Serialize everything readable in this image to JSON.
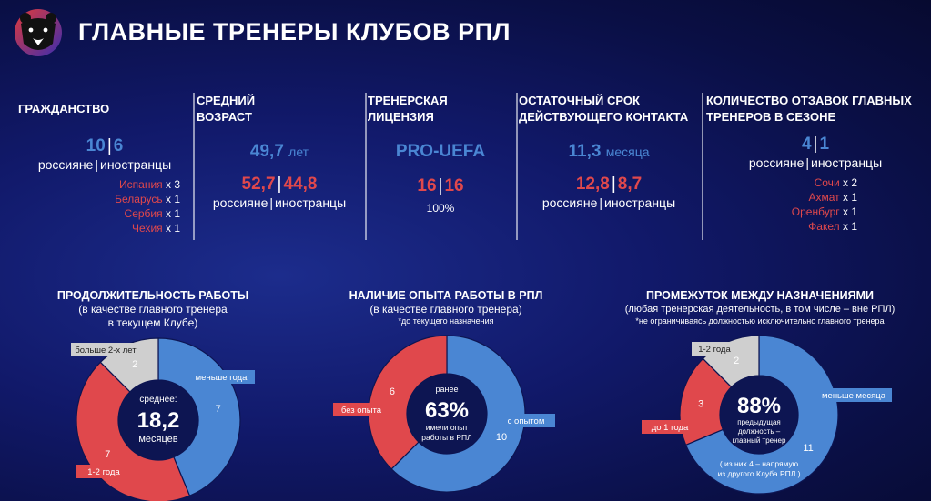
{
  "header": {
    "title": "ГЛАВНЫЕ ТРЕНЕРЫ КЛУБОВ РПЛ"
  },
  "colors": {
    "blue": "#4a86d3",
    "red": "#e0484c",
    "gray": "#cfcfcf",
    "center": "#0d1552"
  },
  "stats": {
    "citizenship": {
      "title": "ГРАЖДАНСТВО",
      "russians": "10",
      "foreigners": "6",
      "sublabel_left": "россияне",
      "sublabel_right": "иностранцы",
      "countries": [
        {
          "name": "Испания",
          "count": "х 3"
        },
        {
          "name": "Беларусь",
          "count": "х 1"
        },
        {
          "name": "Сербия",
          "count": "х 1"
        },
        {
          "name": "Чехия",
          "count": "х 1"
        }
      ]
    },
    "age": {
      "title_l1": "СРЕДНИЙ",
      "title_l2": "ВОЗРАСТ",
      "avg": "49,7",
      "avg_unit": "лет",
      "russians": "52,7",
      "foreigners": "44,8",
      "sublabel_left": "россияне",
      "sublabel_right": "иностранцы"
    },
    "license": {
      "title_l1": "ТРЕНЕРСКАЯ",
      "title_l2": "ЛИЦЕНЗИЯ",
      "name": "PRO-UEFA",
      "have": "16",
      "total": "16",
      "percent": "100%"
    },
    "contract": {
      "title_l1": "ОСТАТОЧНЫЙ СРОК",
      "title_l2": "ДЕЙСТВУЮЩЕГО КОНТАКТА",
      "avg": "11,3",
      "avg_unit": "месяца",
      "russians": "12,8",
      "foreigners": "8,7",
      "sublabel_left": "россияне",
      "sublabel_right": "иностранцы"
    },
    "dismissals": {
      "title_l1": "КОЛИЧЕСТВО ОТЗАВОК ГЛАВНЫХ",
      "title_l2": "ТРЕНЕРОВ В СЕЗОНЕ",
      "russians": "4",
      "foreigners": "1",
      "sublabel_left": "россияне",
      "sublabel_right": "иностранцы",
      "clubs": [
        {
          "name": "Сочи",
          "count": "х 2"
        },
        {
          "name": "Ахмат",
          "count": "х 1"
        },
        {
          "name": "Оренбург",
          "count": "х 1"
        },
        {
          "name": "Факел",
          "count": "х 1"
        }
      ]
    }
  },
  "chart_data": [
    {
      "type": "pie",
      "title": "ПРОДОЛЖИТЕЛЬНОСТЬ РАБОТЫ",
      "subtitle_l1": "(в качестве главного тренера",
      "subtitle_l2": "в текущем Клубе)",
      "center_top": "среднее:",
      "center_value": "18,2",
      "center_bottom": "месяцев",
      "categories": [
        "меньше года",
        "1-2 года",
        "больше 2-х лет"
      ],
      "values": [
        7,
        7,
        2
      ]
    },
    {
      "type": "pie",
      "title": "НАЛИЧИЕ ОПЫТА РАБОТЫ В РПЛ",
      "subtitle_l1": "(в качестве главного тренера)",
      "subtitle_l2": "*до текущего назначения",
      "center_top": "ранее",
      "center_value": "63%",
      "center_bottom_l1": "имели опыт",
      "center_bottom_l2": "работы в РПЛ",
      "categories": [
        "с опытом",
        "без опыта"
      ],
      "values": [
        10,
        6
      ]
    },
    {
      "type": "pie",
      "title": "ПРОМЕЖУТОК МЕЖДУ НАЗНАЧЕНИЯМИ",
      "subtitle_l1": "(любая тренерская деятельность, в том числе – вне РПЛ)",
      "subtitle_l2": "*не ограничиваясь должностью исключительно главного тренера",
      "center_value": "88%",
      "center_bottom_l1": "предыдущая",
      "center_bottom_l2": "должность –",
      "center_bottom_l3": "главный тренер",
      "note_l1": "( из них 4 – напрямую",
      "note_l2": "из другого Клуба РПЛ )",
      "categories": [
        "меньше месяца",
        "до 1 года",
        "1-2 года"
      ],
      "values": [
        11,
        3,
        2
      ]
    }
  ]
}
